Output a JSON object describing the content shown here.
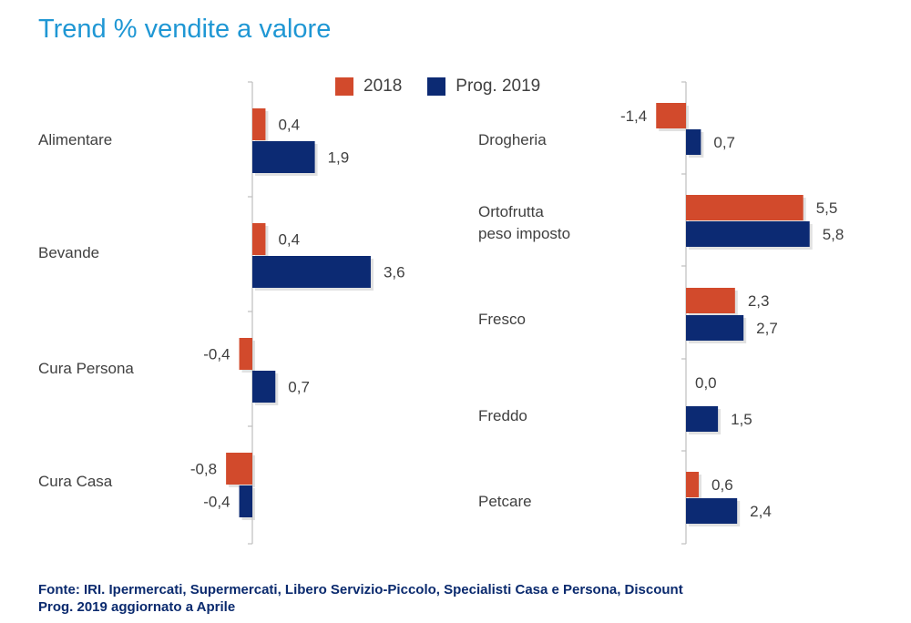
{
  "title": "Trend % vendite a valore",
  "legend": [
    {
      "label": "2018",
      "color": "#d24a2c"
    },
    {
      "label": "Prog. 2019",
      "color": "#0c2a73"
    }
  ],
  "chart_data": [
    {
      "type": "bar",
      "orientation": "horizontal",
      "categories": [
        "Alimentare",
        "Bevande",
        "Cura Persona",
        "Cura Casa"
      ],
      "series": [
        {
          "name": "2018",
          "values": [
            0.4,
            0.4,
            -0.4,
            -0.8
          ],
          "labels": [
            "0,4",
            "0,4",
            "-0,4",
            "-0,8"
          ]
        },
        {
          "name": "Prog. 2019",
          "values": [
            1.9,
            3.6,
            0.7,
            -0.4
          ],
          "labels": [
            "1,9",
            "3,6",
            "0,7",
            "-0,4"
          ]
        }
      ]
    },
    {
      "type": "bar",
      "orientation": "horizontal",
      "categories": [
        "Drogheria",
        "Ortofrutta\npeso imposto",
        "Fresco",
        "Freddo",
        "Petcare"
      ],
      "series": [
        {
          "name": "2018",
          "values": [
            -1.4,
            5.5,
            2.3,
            0.0,
            0.6
          ],
          "labels": [
            "-1,4",
            "5,5",
            "2,3",
            "0,0",
            "0,6"
          ]
        },
        {
          "name": "Prog. 2019",
          "values": [
            0.7,
            5.8,
            2.7,
            1.5,
            2.4
          ],
          "labels": [
            "0,7",
            "5,8",
            "2,7",
            "1,5",
            "2,4"
          ]
        }
      ]
    }
  ],
  "footnote": {
    "line1": "Fonte: IRI. Ipermercati, Supermercati, Libero Servizio-Piccolo, Specialisti Casa e Persona, Discount",
    "line2": "Prog. 2019 aggiornato a Aprile"
  }
}
